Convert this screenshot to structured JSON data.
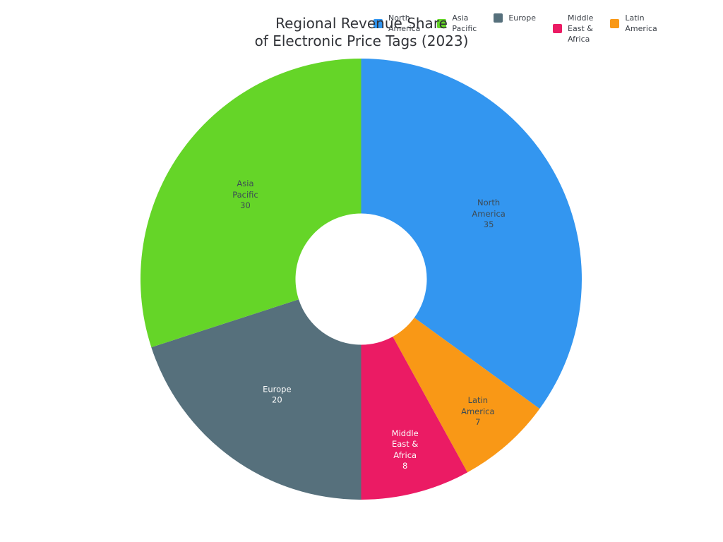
{
  "chart_data": {
    "type": "pie",
    "donut": true,
    "hole_ratio": 0.3,
    "title": "Regional Revenue Share of Electronic Price Tags (2023)",
    "title_lines": [
      "Regional Revenue Share",
      "of Electronic Price Tags (2023)"
    ],
    "background_color": "#ffffff",
    "legend_position": "top",
    "slices_clockwise_from_top": [
      {
        "label": "North America",
        "label_lines": [
          "North",
          "America"
        ],
        "value": 35,
        "color": "#3396f0",
        "text_color": "#3d4b55"
      },
      {
        "label": "Latin America",
        "label_lines": [
          "Latin",
          "America"
        ],
        "value": 7,
        "color": "#f99816",
        "text_color": "#3d4b55"
      },
      {
        "label": "Middle East & Africa",
        "label_lines": [
          "Middle",
          "East &",
          "Africa"
        ],
        "value": 8,
        "color": "#eb1b64",
        "text_color": "#fbfbfb"
      },
      {
        "label": "Europe",
        "label_lines": [
          "Europe"
        ],
        "value": 20,
        "color": "#56707c",
        "text_color": "#fbfbfb"
      },
      {
        "label": "Asia Pacific",
        "label_lines": [
          "Asia",
          "Pacific"
        ],
        "value": 30,
        "color": "#65d528",
        "text_color": "#3d4b55"
      }
    ],
    "legend_items": [
      {
        "label": "North America",
        "lines": [
          "North",
          "America"
        ],
        "color": "#3396f0"
      },
      {
        "label": "Asia Pacific",
        "lines": [
          "Asia",
          "Pacific"
        ],
        "color": "#65d528"
      },
      {
        "label": "Europe",
        "lines": [
          "Europe"
        ],
        "color": "#56707c"
      },
      {
        "label": "Middle East & Africa",
        "lines": [
          "Middle",
          "East &",
          "Africa"
        ],
        "color": "#eb1b64"
      },
      {
        "label": "Latin America",
        "lines": [
          "Latin",
          "America"
        ],
        "color": "#f99816"
      }
    ]
  }
}
